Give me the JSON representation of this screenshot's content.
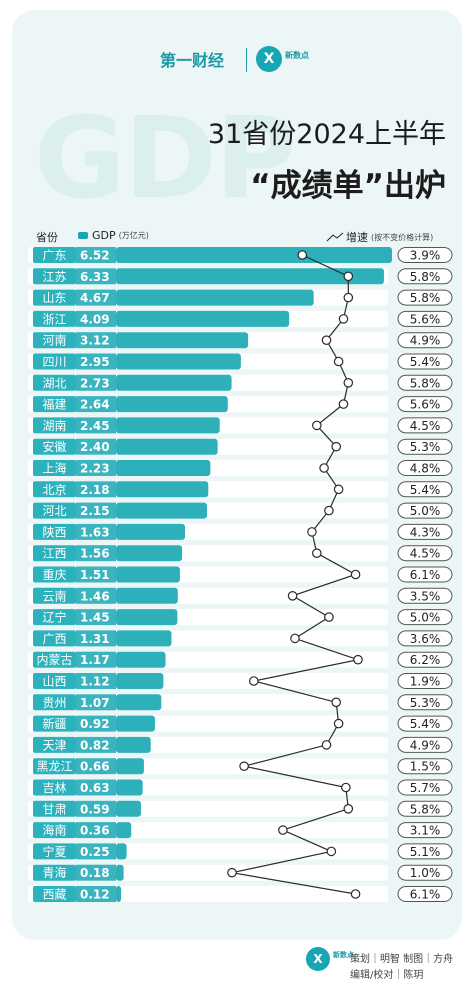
{
  "brand": {
    "logo_left": "第一财经",
    "logo_right_mark": "X",
    "logo_right_text": "新数点"
  },
  "title": {
    "line1": "31省份2024上半年",
    "line2": "“成绩单”出炉"
  },
  "watermark": "GDP",
  "legend": {
    "province_header": "省份",
    "gdp_label": "GDP",
    "gdp_unit": "(万亿元)",
    "growth_label": "增速",
    "growth_note": "(按不变价格计算)"
  },
  "colors": {
    "accent": "#17a7b4",
    "label_bg": "#2bb2bd",
    "background": "#edf6f6",
    "line": "#2b2b2b"
  },
  "chart_data": {
    "type": "bar",
    "categories": [
      "广东",
      "江苏",
      "山东",
      "浙江",
      "河南",
      "四川",
      "湖北",
      "福建",
      "湖南",
      "安徽",
      "上海",
      "北京",
      "河北",
      "陕西",
      "江西",
      "重庆",
      "云南",
      "辽宁",
      "广西",
      "内蒙古",
      "山西",
      "贵州",
      "新疆",
      "天津",
      "黑龙江",
      "吉林",
      "甘肃",
      "海南",
      "宁夏",
      "青海",
      "西藏"
    ],
    "series": [
      {
        "name": "GDP",
        "values": [
          6.52,
          6.33,
          4.67,
          4.09,
          3.12,
          2.95,
          2.73,
          2.64,
          2.45,
          2.4,
          2.23,
          2.18,
          2.15,
          1.63,
          1.56,
          1.51,
          1.46,
          1.45,
          1.31,
          1.17,
          1.12,
          1.07,
          0.92,
          0.82,
          0.66,
          0.63,
          0.59,
          0.36,
          0.25,
          0.18,
          0.12
        ],
        "labels": [
          "6.52",
          "6.33",
          "4.67",
          "4.09",
          "3.12",
          "2.95",
          "2.73",
          "2.64",
          "2.45",
          "2.40",
          "2.23",
          "2.18",
          "2.15",
          "1.63",
          "1.56",
          "1.51",
          "1.46",
          "1.45",
          "1.31",
          "1.17",
          "1.12",
          "1.07",
          "0.92",
          "0.82",
          "0.66",
          "0.63",
          "0.59",
          "0.36",
          "0.25",
          "0.18",
          "0.12"
        ]
      },
      {
        "name": "增速",
        "values": [
          3.9,
          5.8,
          5.8,
          5.6,
          4.9,
          5.4,
          5.8,
          5.6,
          4.5,
          5.3,
          4.8,
          5.4,
          5.0,
          4.3,
          4.5,
          6.1,
          3.5,
          5.0,
          3.6,
          6.2,
          1.9,
          5.3,
          5.4,
          4.9,
          1.5,
          5.7,
          5.8,
          3.1,
          5.1,
          1.0,
          6.1
        ],
        "labels": [
          "3.9%",
          "5.8%",
          "5.8%",
          "5.6%",
          "4.9%",
          "5.4%",
          "5.8%",
          "5.6%",
          "4.5%",
          "5.3%",
          "4.8%",
          "5.4%",
          "5.0%",
          "4.3%",
          "4.5%",
          "6.1%",
          "3.5%",
          "5.0%",
          "3.6%",
          "6.2%",
          "1.9%",
          "5.3%",
          "5.4%",
          "4.9%",
          "1.5%",
          "5.7%",
          "5.8%",
          "3.1%",
          "5.1%",
          "1.0%",
          "6.1%"
        ]
      }
    ],
    "orientation": "horizontal",
    "xlim_gdp": [
      0,
      6.52
    ],
    "grid": false
  },
  "credits": {
    "line1": "策划｜明智  制图｜方舟",
    "line2": "编辑/校对｜陈玥"
  }
}
